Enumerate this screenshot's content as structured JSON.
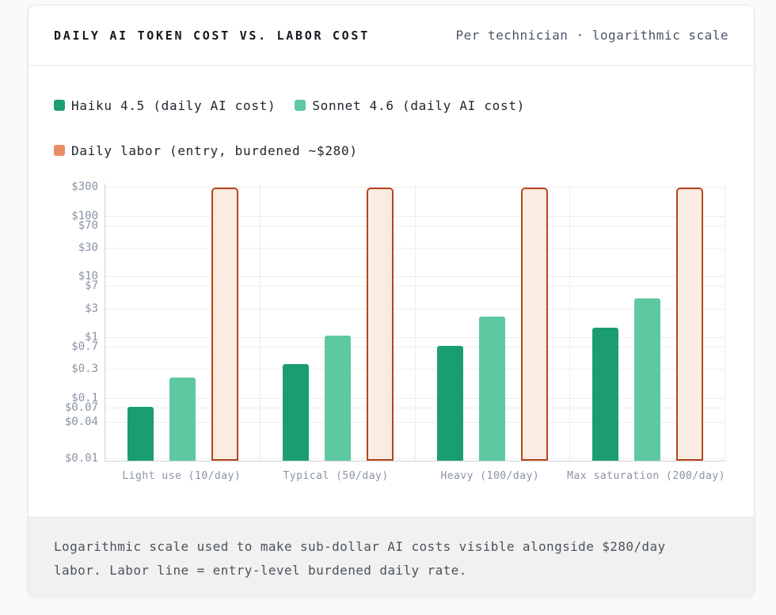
{
  "page_background": "#fafaf8",
  "header": {
    "title": "DAILY AI TOKEN COST VS. LABOR COST",
    "subtitle": "Per technician · logarithmic scale"
  },
  "legend": {
    "items": [
      {
        "label": "Haiku 4.5 (daily AI cost)",
        "swatch_color": "#1a9e71"
      },
      {
        "label": "Sonnet 4.6 (daily AI cost)",
        "swatch_color": "#5ec9a0"
      },
      {
        "label": "Daily labor (entry, burdened ~$280)",
        "swatch_color": "#ea8c68"
      }
    ]
  },
  "footer": {
    "note": "Logarithmic scale used to make sub-dollar AI costs visible alongside $280/day labor. Labor line = entry-level burdened daily rate."
  },
  "chart_data": {
    "type": "bar",
    "title": "DAILY AI TOKEN COST VS. LABOR COST",
    "subtitle": "Per technician · logarithmic scale",
    "scale": "logarithmic",
    "categories": [
      "Light use (10/day)",
      "Typical (50/day)",
      "Heavy (100/day)",
      "Max saturation (200/day)"
    ],
    "series": [
      {
        "name": "Haiku 4.5 (daily AI cost)",
        "values": [
          0.07,
          0.35,
          0.7,
          1.4
        ],
        "fill": "#1a9e71"
      },
      {
        "name": "Sonnet 4.6 (daily AI cost)",
        "values": [
          0.21,
          1.05,
          2.1,
          4.2
        ],
        "fill": "#5ec9a0"
      },
      {
        "name": "Daily labor (entry, burdened ~$280)",
        "values": [
          280,
          280,
          280,
          280
        ],
        "fill": "#faece2",
        "border": "#b5451b"
      }
    ],
    "ytick_values": [
      300,
      100,
      70,
      30,
      10,
      7,
      3,
      1,
      0.7,
      0.3,
      0.1,
      0.07,
      0.04,
      0.01
    ],
    "ytick_labels": [
      "$300",
      "$100",
      "$70",
      "$30",
      "$10",
      "$7",
      "$3",
      "$1",
      "$0.7",
      "$0.3",
      "$0.1",
      "$0.07",
      "$0.04",
      "$0.01"
    ],
    "ylim": [
      0.009,
      340
    ],
    "grid": true,
    "legend_position": "top",
    "ylabel": "",
    "xlabel": ""
  }
}
